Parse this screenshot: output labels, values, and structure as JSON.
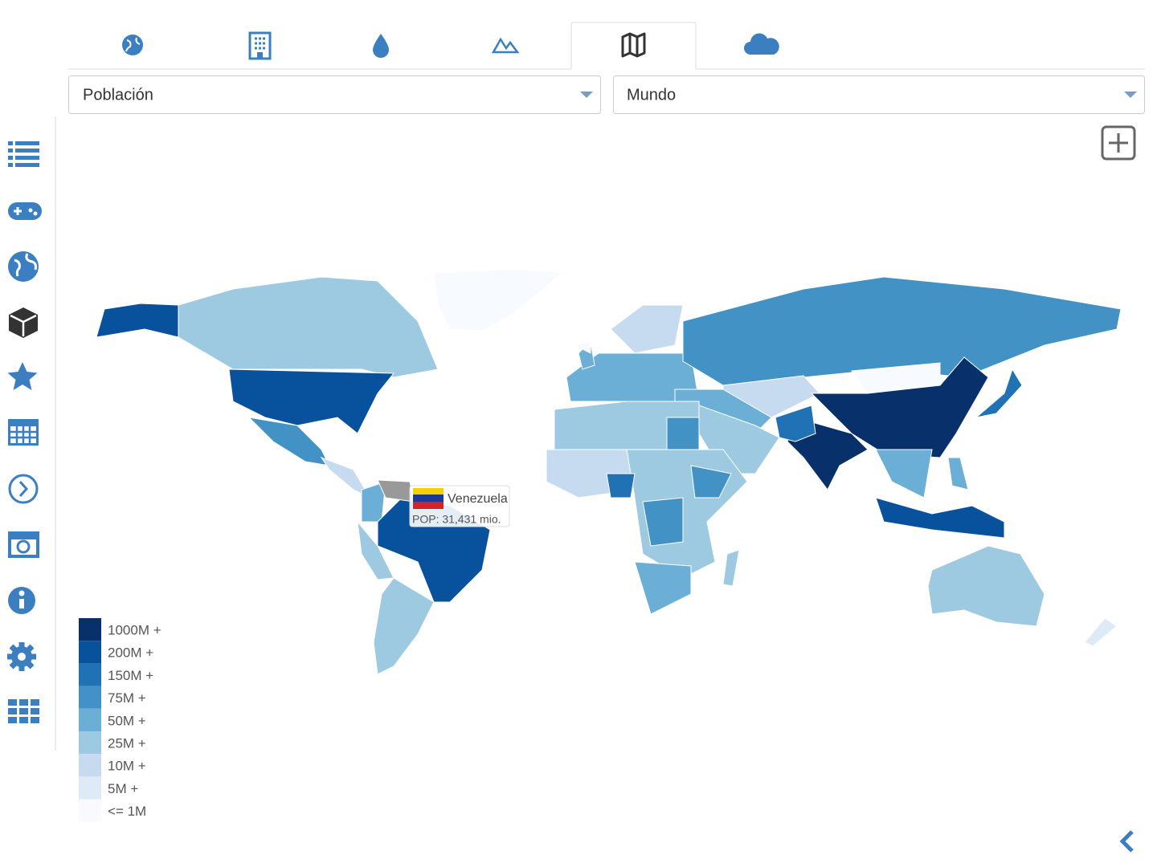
{
  "dropdowns": [
    "Población",
    "Mundo"
  ],
  "tooltip": {
    "title": "Venezuela",
    "text": "POP: 31,431 mio."
  },
  "legend": [
    {
      "label": "1000M +",
      "color": "#08306b"
    },
    {
      "label": "200M +",
      "color": "#08519c"
    },
    {
      "label": "150M +",
      "color": "#2171b5"
    },
    {
      "label": "75M +",
      "color": "#4292c6"
    },
    {
      "label": "50M +",
      "color": "#6baed6"
    },
    {
      "label": "25M +",
      "color": "#9ecae1"
    },
    {
      "label": "10M +",
      "color": "#c6dbef"
    },
    {
      "label": "5M +",
      "color": "#deebf7"
    },
    {
      "label": "<= 1M",
      "color": "#f7fbff"
    }
  ]
}
